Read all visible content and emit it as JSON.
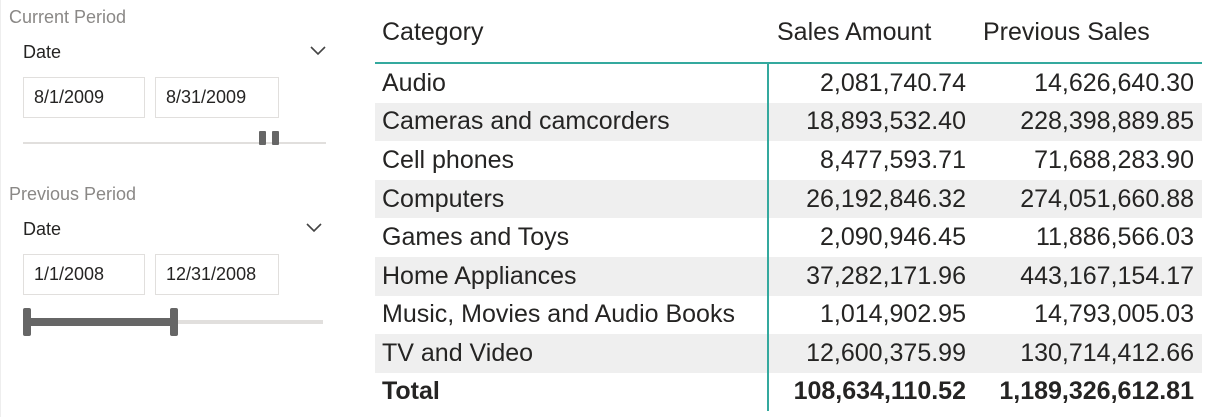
{
  "current_period": {
    "title": "Current Period",
    "field": "Date",
    "start": "8/1/2009",
    "end": "8/31/2009",
    "range_fraction": [
      0.8,
      0.83
    ]
  },
  "previous_period": {
    "title": "Previous Period",
    "field": "Date",
    "start": "1/1/2008",
    "end": "12/31/2008",
    "range_fraction": [
      0.0,
      0.5
    ]
  },
  "table": {
    "headers": [
      "Category",
      "Sales Amount",
      "Previous Sales"
    ],
    "rows": [
      {
        "category": "Audio",
        "sales": "2,081,740.74",
        "previous": "14,626,640.30"
      },
      {
        "category": "Cameras and camcorders",
        "sales": "18,893,532.40",
        "previous": "228,398,889.85"
      },
      {
        "category": "Cell phones",
        "sales": "8,477,593.71",
        "previous": "71,688,283.90"
      },
      {
        "category": "Computers",
        "sales": "26,192,846.32",
        "previous": "274,051,660.88"
      },
      {
        "category": "Games and Toys",
        "sales": "2,090,946.45",
        "previous": "11,886,566.03"
      },
      {
        "category": "Home Appliances",
        "sales": "37,282,171.96",
        "previous": "443,167,154.17"
      },
      {
        "category": "Music, Movies and Audio Books",
        "sales": "1,014,902.95",
        "previous": "14,793,005.03"
      },
      {
        "category": "TV and Video",
        "sales": "12,600,375.99",
        "previous": "130,714,412.66"
      }
    ],
    "total": {
      "label": "Total",
      "sales": "108,634,110.52",
      "previous": "1,189,326,612.81"
    }
  },
  "icons": {
    "dropdown": "chevron-down-icon"
  },
  "colors": {
    "accent": "#34a99e",
    "slider": "#666666"
  }
}
